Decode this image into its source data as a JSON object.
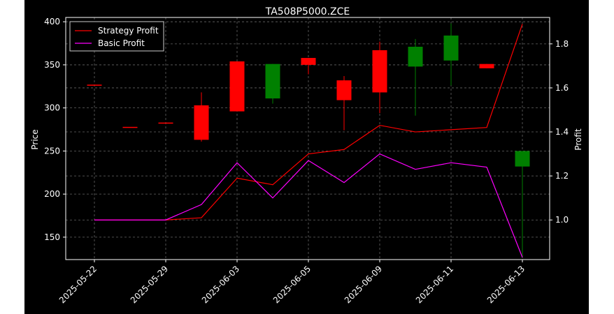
{
  "chart_data": {
    "type": "candlestick",
    "title": "TA508P5000.ZCE",
    "xlabel": "",
    "ylabel_left": "Price",
    "ylabel_right": "Profit",
    "ylim_left": [
      124,
      405
    ],
    "ylim_right": [
      0.82,
      1.92
    ],
    "yticks_left": [
      150,
      200,
      250,
      300,
      350,
      400
    ],
    "yticks_right": [
      1.0,
      1.2,
      1.4,
      1.6,
      1.8
    ],
    "xtick_labels": [
      {
        "index": 0,
        "label": "2025-05-22"
      },
      {
        "index": 2,
        "label": "2025-05-29"
      },
      {
        "index": 4,
        "label": "2025-06-03"
      },
      {
        "index": 6,
        "label": "2025-06-05"
      },
      {
        "index": 8,
        "label": "2025-06-09"
      },
      {
        "index": 10,
        "label": "2025-06-11"
      },
      {
        "index": 12,
        "label": "2025-06-13"
      }
    ],
    "grid": true,
    "legend_position": "top-left",
    "candles": [
      {
        "open": 327,
        "close": 327,
        "high": 327,
        "low": 327
      },
      {
        "open": 278,
        "close": 278,
        "high": 278,
        "low": 278
      },
      {
        "open": 283,
        "close": 283,
        "high": 283,
        "low": 283
      },
      {
        "open": 303,
        "close": 263,
        "high": 318,
        "low": 261
      },
      {
        "open": 354,
        "close": 296,
        "high": 354,
        "low": 296
      },
      {
        "open": 311,
        "close": 351,
        "high": 351,
        "low": 305
      },
      {
        "open": 358,
        "close": 350,
        "high": 358,
        "low": 339
      },
      {
        "open": 332,
        "close": 309,
        "high": 337,
        "low": 274
      },
      {
        "open": 367,
        "close": 318,
        "high": 377,
        "low": 294
      },
      {
        "open": 348,
        "close": 371,
        "high": 380,
        "low": 291
      },
      {
        "open": 355,
        "close": 384,
        "high": 398,
        "low": 326
      },
      {
        "open": 351,
        "close": 346,
        "high": 351,
        "low": 346
      },
      {
        "open": 232,
        "close": 250,
        "high": 250,
        "low": 126
      }
    ],
    "series": [
      {
        "name": "Strategy Profit",
        "color": "#ff0000",
        "values": [
          1.0,
          1.0,
          1.0,
          1.01,
          1.19,
          1.16,
          1.3,
          1.32,
          1.43,
          1.4,
          1.41,
          1.42,
          1.89
        ]
      },
      {
        "name": "Basic Profit",
        "color": "#ff00ff",
        "values": [
          1.0,
          1.0,
          1.0,
          1.07,
          1.26,
          1.1,
          1.27,
          1.17,
          1.3,
          1.23,
          1.26,
          1.24,
          0.83
        ]
      }
    ],
    "colors": {
      "up": "#008000",
      "down": "#ff0000",
      "background": "#000000",
      "grid": "#666666"
    }
  }
}
